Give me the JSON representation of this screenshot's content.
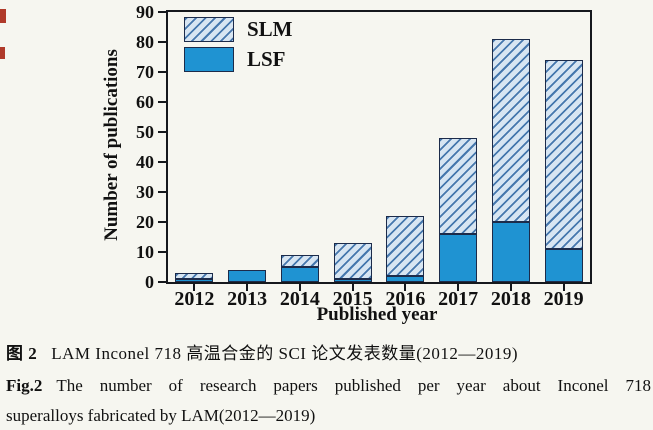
{
  "figure": {
    "caption_zh_label": "图 2",
    "caption_zh_text": "LAM Inconel 718 高温合金的 SCI 论文发表数量(2012—2019)",
    "caption_en_label": "Fig.2",
    "caption_en_line1": "The number of research papers published per year about Inconel 718",
    "caption_en_line2": "superalloys fabricated by LAM(2012—2019)"
  },
  "chart_data": {
    "type": "bar",
    "stacked": true,
    "title": "",
    "xlabel": "Published year",
    "ylabel": "Number of publications",
    "categories": [
      "2012",
      "2013",
      "2014",
      "2015",
      "2016",
      "2017",
      "2018",
      "2019"
    ],
    "series": [
      {
        "name": "SLM",
        "style": "hatched",
        "values": [
          2,
          0,
          4,
          12,
          20,
          32,
          61,
          63
        ]
      },
      {
        "name": "LSF",
        "style": "solid",
        "values": [
          1,
          4,
          5,
          1,
          2,
          16,
          20,
          11
        ]
      }
    ],
    "totals": [
      3,
      4,
      9,
      13,
      22,
      48,
      81,
      74
    ],
    "ylim": [
      0,
      90
    ],
    "ytick_step": 10,
    "grid": false,
    "legend_position": "top-left-inside",
    "colors": {
      "lsf_fill": "#1f93d2",
      "slm_hatch_line": "#4577ad",
      "slm_hatch_bg": "#d7e5f2",
      "bar_border": "#1c2b4a",
      "frame": "#15181d",
      "text": "#111111",
      "paper": "#f6f6f0",
      "edge_artifact": "#b03a2a"
    }
  }
}
